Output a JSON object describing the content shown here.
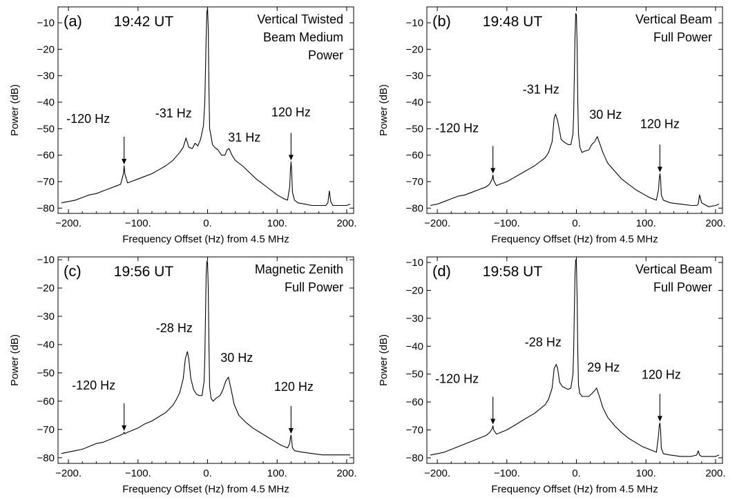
{
  "chart_data": [
    {
      "type": "line",
      "panel_label": "(a)",
      "time": "19:42 UT",
      "description": [
        "Vertical Twisted",
        "Beam Medium",
        "Power"
      ],
      "xlabel": "Frequency Offset (Hz) from 4.5 MHz",
      "ylabel": "Power (dB)",
      "xlim": [
        -215,
        210
      ],
      "ylim": [
        -82,
        -4
      ],
      "x_ticks": [
        -200,
        -100,
        0,
        100,
        200
      ],
      "x_tick_labels": [
        "−200.",
        "−100.",
        "0.",
        "100.",
        "200."
      ],
      "y_ticks": [
        -10,
        -20,
        -30,
        -40,
        -50,
        -60,
        -70,
        -80
      ],
      "y_tick_labels": [
        "−10",
        "−20",
        "−30",
        "−40",
        "−50",
        "−60",
        "−70",
        "−80"
      ],
      "series": [
        {
          "x": [
            -210,
            -200,
            -190,
            -180,
            -170,
            -160,
            -150,
            -140,
            -130,
            -125,
            -121,
            -120,
            -119,
            -115,
            -110,
            -100,
            -90,
            -80,
            -70,
            -60,
            -50,
            -40,
            -35,
            -31,
            -27,
            -22,
            -18,
            -14,
            -10,
            -6,
            -4,
            -3,
            -2,
            -1,
            0,
            1,
            2,
            3,
            5,
            7,
            10,
            15,
            20,
            25,
            28,
            31,
            35,
            40,
            50,
            60,
            70,
            80,
            90,
            100,
            110,
            115,
            118,
            119,
            120,
            121,
            122,
            125,
            130,
            140,
            150,
            160,
            170,
            173,
            175,
            177,
            180,
            190,
            200,
            205
          ],
          "y": [
            -78,
            -77.5,
            -77,
            -76,
            -75,
            -74.5,
            -73.5,
            -72.5,
            -71.5,
            -71,
            -67,
            -64,
            -67,
            -70.5,
            -70,
            -69,
            -68,
            -67,
            -65.5,
            -64,
            -62,
            -59,
            -57,
            -53.5,
            -57,
            -57.5,
            -55.5,
            -56.5,
            -54,
            -49,
            -40,
            -28,
            -15,
            -6,
            -4.5,
            -12,
            -35,
            -50,
            -53,
            -56,
            -57,
            -58,
            -60,
            -60,
            -58,
            -57.5,
            -60,
            -62,
            -64,
            -66.5,
            -69,
            -71,
            -73,
            -75,
            -76.5,
            -77,
            -72,
            -66,
            -62.5,
            -67,
            -74,
            -77,
            -78,
            -78.5,
            -79,
            -79,
            -79,
            -78,
            -73.5,
            -77.5,
            -79,
            -79,
            -79,
            -78.5
          ]
        }
      ],
      "annotations": [
        {
          "text": "-120 Hz",
          "x": -120,
          "y": -64,
          "arrow": true
        },
        {
          "text": "-31 Hz",
          "x": -31,
          "y": -53.5,
          "arrow": false
        },
        {
          "text": "31 Hz",
          "x": 31,
          "y": -57.5,
          "arrow": false
        },
        {
          "text": "120 Hz",
          "x": 120,
          "y": -62.5,
          "arrow": true
        }
      ]
    },
    {
      "type": "line",
      "panel_label": "(b)",
      "time": "19:48 UT",
      "description": [
        "Vertical Beam",
        "Full Power"
      ],
      "xlabel": "Frequency Offset (Hz) from 4.5 MHz",
      "ylabel": "Power (dB)",
      "xlim": [
        -215,
        210
      ],
      "ylim": [
        -82,
        -4
      ],
      "x_ticks": [
        -200,
        -100,
        0,
        100,
        200
      ],
      "x_tick_labels": [
        "−200.",
        "−100.",
        "0.",
        "100.",
        "200."
      ],
      "y_ticks": [
        -10,
        -20,
        -30,
        -40,
        -50,
        -60,
        -70,
        -80
      ],
      "y_tick_labels": [
        "−10",
        "−20",
        "−30",
        "−40",
        "−50",
        "−60",
        "−70",
        "−80"
      ],
      "series": [
        {
          "x": [
            -210,
            -200,
            -190,
            -180,
            -170,
            -160,
            -150,
            -140,
            -130,
            -125,
            -121,
            -120,
            -119,
            -115,
            -110,
            -100,
            -90,
            -80,
            -70,
            -60,
            -50,
            -45,
            -40,
            -35,
            -32,
            -30,
            -27,
            -22,
            -18,
            -12,
            -8,
            -5,
            -4,
            -3,
            -2,
            -1,
            0,
            1,
            2,
            3,
            5,
            8,
            12,
            18,
            22,
            26,
            30,
            34,
            38,
            45,
            55,
            65,
            75,
            85,
            95,
            105,
            115,
            118,
            119,
            120,
            121,
            122,
            125,
            135,
            150,
            165,
            173,
            175,
            177,
            180,
            190,
            200,
            205
          ],
          "y": [
            -79,
            -78.5,
            -77.5,
            -76.5,
            -75.5,
            -75,
            -74,
            -73,
            -72,
            -71,
            -69,
            -67.5,
            -69.5,
            -71.5,
            -71,
            -70,
            -68.5,
            -67,
            -65.5,
            -64,
            -62,
            -61,
            -59,
            -55,
            -46,
            -44.5,
            -47,
            -54,
            -55,
            -56,
            -56,
            -52,
            -45,
            -30,
            -15,
            -6.5,
            -7,
            -18,
            -40,
            -52,
            -57,
            -59,
            -58.5,
            -58,
            -56,
            -55,
            -53,
            -56,
            -59,
            -63,
            -66,
            -69,
            -71,
            -73,
            -74.5,
            -76,
            -77,
            -73,
            -69,
            -67,
            -69,
            -75,
            -77,
            -78,
            -78.5,
            -79,
            -79,
            -78.5,
            -75,
            -78,
            -79.5,
            -79,
            -78.5
          ]
        }
      ],
      "annotations": [
        {
          "text": "-120 Hz",
          "x": -120,
          "y": -67.5,
          "arrow": true
        },
        {
          "text": "-31 Hz",
          "x": -31,
          "y": -44.5,
          "arrow": false
        },
        {
          "text": "30 Hz",
          "x": 30,
          "y": -53,
          "arrow": false
        },
        {
          "text": "120 Hz",
          "x": 120,
          "y": -67,
          "arrow": true
        }
      ]
    },
    {
      "type": "line",
      "panel_label": "(c)",
      "time": "19:56 UT",
      "description": [
        "Magnetic Zenith",
        "Full Power"
      ],
      "xlabel": "Frequency Offset (Hz) from 4.5 MHz",
      "ylabel": "Power (dB)",
      "xlim": [
        -215,
        210
      ],
      "ylim": [
        -82,
        -9
      ],
      "x_ticks": [
        -200,
        -100,
        0,
        100,
        200
      ],
      "x_tick_labels": [
        "−200.",
        "−100.",
        "0.",
        "100.",
        "200."
      ],
      "y_ticks": [
        -10,
        -20,
        -30,
        -40,
        -50,
        -60,
        -70,
        -80
      ],
      "y_tick_labels": [
        "−10",
        "−20",
        "−30",
        "−40",
        "−50",
        "−60",
        "−70",
        "−80"
      ],
      "series": [
        {
          "x": [
            -210,
            -200,
            -190,
            -180,
            -170,
            -160,
            -150,
            -140,
            -130,
            -125,
            -121,
            -120,
            -119,
            -115,
            -110,
            -100,
            -90,
            -80,
            -70,
            -60,
            -50,
            -45,
            -40,
            -35,
            -32,
            -29,
            -27,
            -24,
            -20,
            -16,
            -12,
            -8,
            -5,
            -4,
            -3,
            -2,
            -1,
            0,
            1,
            2,
            3,
            5,
            8,
            12,
            18,
            22,
            26,
            30,
            34,
            38,
            45,
            55,
            65,
            75,
            85,
            95,
            105,
            115,
            118,
            119,
            120,
            121,
            122,
            125,
            135,
            150,
            165,
            180,
            190,
            200,
            205
          ],
          "y": [
            -78.5,
            -78,
            -77.5,
            -77,
            -76,
            -75,
            -74.5,
            -73.5,
            -72.5,
            -72,
            -71.5,
            -71,
            -71.5,
            -71,
            -70.5,
            -69.5,
            -68,
            -67,
            -65.5,
            -64,
            -61.5,
            -59.5,
            -57,
            -52,
            -45,
            -42.5,
            -45,
            -52,
            -56,
            -57.5,
            -58,
            -58,
            -53,
            -45,
            -30,
            -15,
            -10.5,
            -11,
            -20,
            -40,
            -55,
            -59,
            -60,
            -59,
            -58,
            -56,
            -53,
            -51.5,
            -56,
            -61,
            -65,
            -67.5,
            -69.5,
            -71,
            -72.5,
            -74,
            -75.5,
            -76.5,
            -75,
            -73,
            -72,
            -74,
            -76.5,
            -77.5,
            -78,
            -78.5,
            -79,
            -79,
            -79,
            -79,
            -79
          ]
        }
      ],
      "annotations": [
        {
          "text": "-120 Hz",
          "x": -120,
          "y": -71,
          "arrow": true
        },
        {
          "text": "-28 Hz",
          "x": -28,
          "y": -42.5,
          "arrow": false
        },
        {
          "text": "30 Hz",
          "x": 30,
          "y": -51.5,
          "arrow": false
        },
        {
          "text": "120 Hz",
          "x": 120,
          "y": -72,
          "arrow": true
        }
      ]
    },
    {
      "type": "line",
      "panel_label": "(d)",
      "time": "19:58 UT",
      "description": [
        "Vertical Beam",
        "Full Power"
      ],
      "xlabel": "Frequency Offset (Hz) from 4.5 MHz",
      "ylabel": "Power (dB)",
      "xlim": [
        -215,
        210
      ],
      "ylim": [
        -82,
        -8
      ],
      "x_ticks": [
        -200,
        -100,
        0,
        100,
        200
      ],
      "x_tick_labels": [
        "−200.",
        "−100.",
        "0.",
        "100.",
        "200."
      ],
      "y_ticks": [
        -10,
        -20,
        -30,
        -40,
        -50,
        -60,
        -70,
        -80
      ],
      "y_tick_labels": [
        "−10",
        "−20",
        "−30",
        "−40",
        "−50",
        "−60",
        "−70",
        "−80"
      ],
      "series": [
        {
          "x": [
            -210,
            -200,
            -190,
            -180,
            -170,
            -160,
            -150,
            -140,
            -130,
            -125,
            -121,
            -120,
            -119,
            -115,
            -110,
            -100,
            -90,
            -80,
            -70,
            -60,
            -50,
            -45,
            -40,
            -35,
            -32,
            -29,
            -27,
            -24,
            -20,
            -16,
            -12,
            -8,
            -5,
            -4,
            -3,
            -2,
            -1,
            0,
            1,
            2,
            3,
            5,
            8,
            12,
            18,
            22,
            26,
            29,
            33,
            38,
            45,
            55,
            65,
            75,
            85,
            95,
            105,
            115,
            118,
            119,
            120,
            121,
            122,
            125,
            135,
            150,
            165,
            173,
            175,
            177,
            180,
            190,
            200,
            205
          ],
          "y": [
            -79,
            -78.5,
            -78,
            -77,
            -76,
            -75,
            -74,
            -73,
            -72,
            -71,
            -69.5,
            -68.5,
            -70,
            -71.5,
            -71,
            -70,
            -68.5,
            -67,
            -65.5,
            -64,
            -62,
            -61,
            -59,
            -55,
            -48,
            -46.5,
            -48,
            -53,
            -54.5,
            -55,
            -55.5,
            -55,
            -50,
            -42,
            -28,
            -14,
            -9,
            -10,
            -22,
            -42,
            -54,
            -57,
            -58,
            -58,
            -58,
            -57,
            -56,
            -55,
            -58,
            -62,
            -65.5,
            -68.5,
            -71,
            -73,
            -74.5,
            -76,
            -77,
            -78,
            -72,
            -68.5,
            -67.5,
            -70,
            -76.5,
            -78.5,
            -79,
            -79.5,
            -79.5,
            -79,
            -77.5,
            -79,
            -79.5,
            -79.5,
            -79.5,
            -79
          ]
        }
      ],
      "annotations": [
        {
          "text": "-120 Hz",
          "x": -120,
          "y": -68.5,
          "arrow": true
        },
        {
          "text": "-28 Hz",
          "x": -28,
          "y": -46.5,
          "arrow": false
        },
        {
          "text": "29 Hz",
          "x": 29,
          "y": -55,
          "arrow": false
        },
        {
          "text": "120 Hz",
          "x": 120,
          "y": -67.5,
          "arrow": true
        }
      ]
    }
  ]
}
